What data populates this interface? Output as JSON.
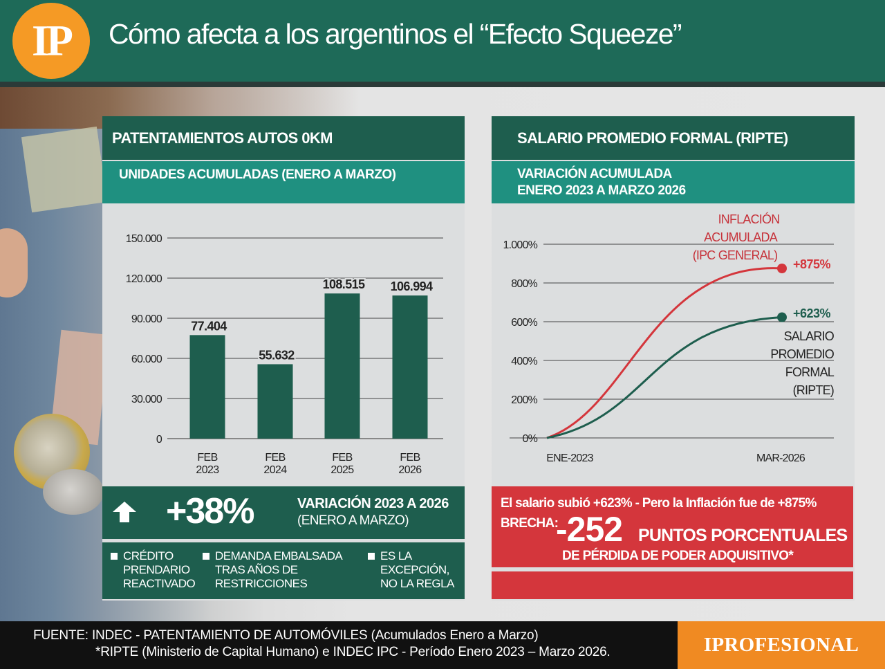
{
  "header": {
    "logo": "IP",
    "title": "Cómo afecta a los argentinos el “Efecto Squeeze”"
  },
  "left": {
    "title": "PATENTAMIENTOS AUTOS 0KM",
    "subtitle": "UNIDADES ACUMULADAS (ENERO A MARZO)",
    "stat_value": "+38%",
    "stat_label_1": "VARIACIÓN 2023 A 2026",
    "stat_label_2": "(ENERO A MARZO)",
    "notes": [
      {
        "line1": "CRÉDITO",
        "line2": "PRENDARIO",
        "line3": "REACTIVADO"
      },
      {
        "line1": "DEMANDA EMBALSADA",
        "line2": "TRAS AÑOS DE",
        "line3": "RESTRICCIONES"
      },
      {
        "line1": "ES LA",
        "line2": "EXCEPCIÓN,",
        "line3": "NO LA REGLA"
      }
    ]
  },
  "right": {
    "title": "SALARIO PROMEDIO FORMAL (RIPTE)",
    "subtitle_1": "VARIACIÓN ACUMULADA",
    "subtitle_2": "ENERO 2023 A MARZO 2026",
    "red_line1": "El salario subió +623% - Pero la Inflación fue de +875%",
    "brecha_label": "BRECHA:",
    "brecha_value": "-252",
    "brecha_unit": "PUNTOS PORCENTUALES",
    "red_line3": "DE PÉRDIDA DE PODER ADQUISITIVO*"
  },
  "footer": {
    "line1": "FUENTE: INDEC - PATENTAMIENTO DE AUTOMÓVILES (Acumulados Enero a Marzo)",
    "line2": "*RIPTE (Ministerio de Capital Humano) e INDEC IPC - Período Enero 2023 – Marzo 2026.",
    "brand": "IPROFESIONAL"
  },
  "colors": {
    "dark_green": "#1e5e4e",
    "teal": "#1f9080",
    "red": "#d4363c",
    "orange": "#f59a25"
  },
  "icons": {
    "stat_arrow": "up-arrow-icon"
  },
  "chart_data": [
    {
      "type": "bar",
      "categories": [
        [
          "FEB",
          "2023"
        ],
        [
          "FEB",
          "2024"
        ],
        [
          "FEB",
          "2025"
        ],
        [
          "FEB",
          "2026"
        ]
      ],
      "values": [
        77404,
        55632,
        108515,
        106994
      ],
      "value_labels": [
        "77.404",
        "55.632",
        "108.515",
        "106.994"
      ],
      "yticks": [
        0,
        30000,
        60000,
        90000,
        120000,
        150000
      ],
      "ytick_labels": [
        "0",
        "30.000",
        "60.000",
        "90.000",
        "120.000",
        "150.000"
      ],
      "ylim": [
        0,
        150000
      ],
      "grid": true,
      "color": "#1e5e4e"
    },
    {
      "type": "line",
      "x_labels": [
        "ENE-2023",
        "MAR-2026"
      ],
      "yticks": [
        0,
        200,
        400,
        600,
        800,
        1000
      ],
      "ytick_labels": [
        "0%",
        "200%",
        "400%",
        "600%",
        "800%",
        "1.000%"
      ],
      "ylim": [
        0,
        1000
      ],
      "grid": true,
      "series": [
        {
          "label_lines": [
            "INFLACIÓN",
            "ACUMULADA",
            "(IPC GENERAL)"
          ],
          "x": [
            "ENE-2023",
            "MAR-2026"
          ],
          "y": [
            0,
            875
          ],
          "end_label": "+875%",
          "color": "#d4363c"
        },
        {
          "label_lines": [
            "SALARIO",
            "PROMEDIO",
            "FORMAL",
            "(RIPTE)"
          ],
          "x": [
            "ENE-2023",
            "MAR-2026"
          ],
          "y": [
            0,
            623
          ],
          "end_label": "+623%",
          "color": "#1e5e4e"
        }
      ]
    }
  ]
}
